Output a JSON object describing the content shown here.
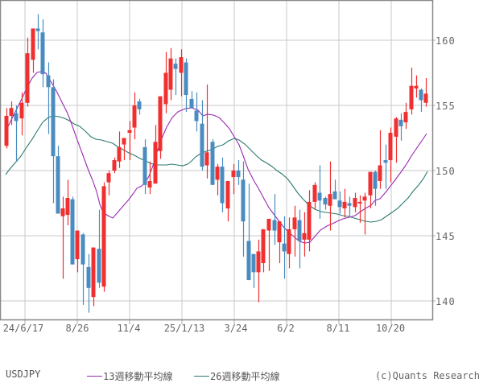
{
  "chart_data": {
    "type": "candlestick",
    "title": "",
    "symbol": "USDJPY",
    "xlabel": "",
    "ylabel": "",
    "ylim": [
      138.5,
      163
    ],
    "y_ticks": [
      140,
      145,
      150,
      155,
      160
    ],
    "x_tick_labels": [
      "24/6/17",
      "8/26",
      "11/4",
      "25/1/13",
      "3/24",
      "6/2",
      "8/11",
      "10/20"
    ],
    "grid": true,
    "legend_position": "bottom",
    "up_color": "#f03030",
    "down_color": "#4a8cc0",
    "series": [
      {
        "name": "13週移動平均線",
        "color": "#9a2ab0"
      },
      {
        "name": "26週移動平均線",
        "color": "#2a7a70"
      }
    ],
    "candles": [
      {
        "o": 152.0,
        "h": 154.8,
        "l": 151.5,
        "c": 154.3
      },
      {
        "o": 154.3,
        "h": 155.5,
        "l": 153.8,
        "c": 155.0
      },
      {
        "o": 154.8,
        "h": 155.3,
        "l": 150.8,
        "c": 153.7
      },
      {
        "o": 153.8,
        "h": 157.0,
        "l": 152.7,
        "c": 156.1
      },
      {
        "o": 156.4,
        "h": 159.9,
        "l": 155.8,
        "c": 159.2
      },
      {
        "o": 159.4,
        "h": 160.9,
        "l": 157.9,
        "c": 161.2
      },
      {
        "o": 161.0,
        "h": 162.0,
        "l": 159.7,
        "c": 161.1
      },
      {
        "o": 161.1,
        "h": 161.6,
        "l": 156.6,
        "c": 157.5
      },
      {
        "o": 157.7,
        "h": 158.3,
        "l": 151.2,
        "c": 157.0
      },
      {
        "o": 157.1,
        "h": 157.2,
        "l": 146.7,
        "c": 151.4
      },
      {
        "o": 151.6,
        "h": 152.3,
        "l": 146.5,
        "c": 146.6
      },
      {
        "o": 146.9,
        "h": 148.5,
        "l": 141.7,
        "c": 146.9
      },
      {
        "o": 146.2,
        "h": 149.1,
        "l": 145.6,
        "c": 148.0
      },
      {
        "o": 148.0,
        "h": 148.7,
        "l": 142.2,
        "c": 143.0
      },
      {
        "o": 143.0,
        "h": 145.4,
        "l": 142.5,
        "c": 145.2
      },
      {
        "o": 145.3,
        "h": 145.8,
        "l": 139.5,
        "c": 141.4
      },
      {
        "o": 141.4,
        "h": 143.2,
        "l": 140.6,
        "c": 139.7
      },
      {
        "o": 139.6,
        "h": 144.3,
        "l": 139.1,
        "c": 144.1
      },
      {
        "o": 144.2,
        "h": 147.0,
        "l": 140.9,
        "c": 140.4
      },
      {
        "o": 140.5,
        "h": 150.3,
        "l": 140.6,
        "c": 149.4
      },
      {
        "o": 149.5,
        "h": 150.5,
        "l": 148.6,
        "c": 149.9
      },
      {
        "o": 150.0,
        "h": 151.1,
        "l": 149.6,
        "c": 150.5
      },
      {
        "o": 150.5,
        "h": 154.1,
        "l": 150.1,
        "c": 153.8
      },
      {
        "o": 153.6,
        "h": 155.1,
        "l": 151.8,
        "c": 153.7
      },
      {
        "o": 153.9,
        "h": 156.2,
        "l": 151.5,
        "c": 155.0
      },
      {
        "o": 155.1,
        "h": 158.3,
        "l": 154.7,
        "c": 156.1
      },
      {
        "o": 156.2,
        "h": 156.8,
        "l": 149.2,
        "c": 150.3
      },
      {
        "o": 150.2,
        "h": 150.7,
        "l": 149.6,
        "c": 150.0
      },
      {
        "o": 149.6,
        "h": 155.5,
        "l": 149.3,
        "c": 154.2
      },
      {
        "o": 154.2,
        "h": 158.1,
        "l": 153.4,
        "c": 157.1
      },
      {
        "o": 157.3,
        "h": 157.6,
        "l": 154.5,
        "c": 158.7
      },
      {
        "o": 158.2,
        "h": 158.5,
        "l": 155.1,
        "c": 157.5
      },
      {
        "o": 157.6,
        "h": 159.1,
        "l": 155.1,
        "c": 158.6
      },
      {
        "o": 157.6,
        "h": 158.3,
        "l": 154.6,
        "c": 156.1
      }
    ],
    "candles_part2": [
      {
        "o": 156.2,
        "h": 156.5,
        "l": 153.8,
        "c": 155.1
      },
      {
        "o": 155.2,
        "h": 155.5,
        "l": 152.6,
        "c": 154.3
      },
      {
        "o": 154.1,
        "h": 155.3,
        "l": 152.8,
        "c": 149.8
      },
      {
        "o": 149.9,
        "h": 153.4,
        "l": 149.2,
        "c": 151.4
      },
      {
        "o": 151.0,
        "h": 151.4,
        "l": 149.1,
        "c": 148.3
      }
    ],
    "ma13": [],
    "ma26": []
  },
  "axis": {
    "y_labels": [
      "160",
      "155",
      "150",
      "145",
      "140"
    ],
    "x_labels": [
      "24/6/17",
      "8/26",
      "11/4",
      "25/1/13",
      "3/24",
      "6/2",
      "8/11",
      "10/20"
    ]
  },
  "legend": {
    "symbol": "USDJPY",
    "ma13_label": "13週移動平均線",
    "ma26_label": "26週移動平均線",
    "credit": "(c)Quants Research"
  }
}
